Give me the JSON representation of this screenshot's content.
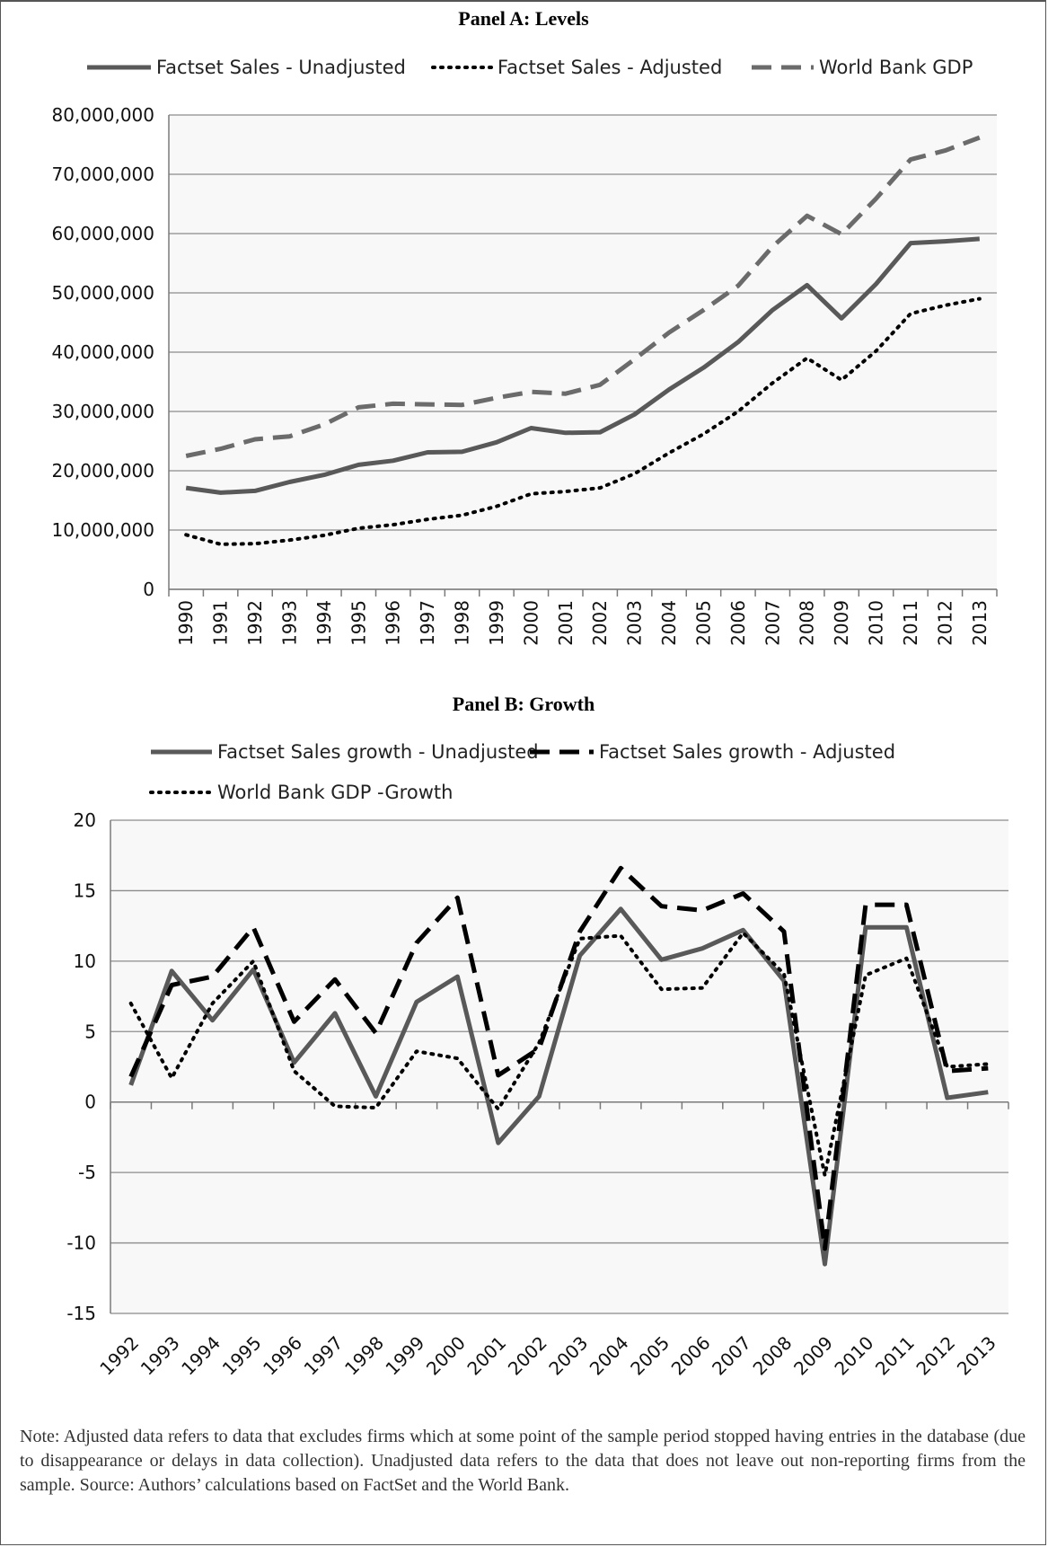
{
  "note": "Note: Adjusted data refers to data that excludes firms which at some point of the sample period stopped having entries in the database (due to disappearance or delays in data collection). Unadjusted data refers to the data that does not leave out non-reporting firms from the sample. Source: Authors’ calculations based on FactSet and the World Bank.",
  "chart_data": [
    {
      "type": "line",
      "title": "Panel A: Levels",
      "xlabel": "",
      "ylabel": "",
      "ylim": [
        0,
        80000000
      ],
      "yticks": [
        "0",
        "10,000,000",
        "20,000,000",
        "30,000,000",
        "40,000,000",
        "50,000,000",
        "60,000,000",
        "70,000,000",
        "80,000,000"
      ],
      "grid": true,
      "legend": "top",
      "categories": [
        "1990",
        "1991",
        "1992",
        "1993",
        "1994",
        "1995",
        "1996",
        "1997",
        "1998",
        "1999",
        "2000",
        "2001",
        "2002",
        "2003",
        "2004",
        "2005",
        "2006",
        "2007",
        "2008",
        "2009",
        "2010",
        "2011",
        "2012",
        "2013"
      ],
      "series": [
        {
          "name": "Factset Sales  - Unadjusted",
          "style": "solid",
          "color": "#595959",
          "values": [
            17100000,
            16300000,
            16600000,
            18100000,
            19300000,
            21000000,
            21700000,
            23100000,
            23200000,
            24800000,
            27200000,
            26400000,
            26500000,
            29500000,
            33700000,
            37400000,
            41700000,
            47100000,
            51300000,
            45700000,
            51500000,
            58400000,
            58700000,
            59100000
          ]
        },
        {
          "name": "Factset Sales  - Adjusted",
          "style": "dotted",
          "color": "#000000",
          "values": [
            9200000,
            7600000,
            7700000,
            8300000,
            9100000,
            10300000,
            10900000,
            11800000,
            12500000,
            14000000,
            16100000,
            16500000,
            17100000,
            19500000,
            23000000,
            26200000,
            30000000,
            34800000,
            39000000,
            35300000,
            40200000,
            46500000,
            47900000,
            49000000
          ]
        },
        {
          "name": "World Bank GDP",
          "style": "dashed",
          "color": "#6b6b6b",
          "values": [
            22500000,
            23700000,
            25300000,
            25800000,
            27800000,
            30700000,
            31300000,
            31200000,
            31100000,
            32300000,
            33300000,
            33000000,
            34500000,
            38800000,
            43300000,
            47100000,
            51200000,
            57800000,
            63000000,
            59900000,
            65900000,
            72500000,
            74000000,
            76200000
          ]
        }
      ]
    },
    {
      "type": "line",
      "title": "Panel B: Growth",
      "xlabel": "",
      "ylabel": "",
      "ylim": [
        -15,
        20
      ],
      "yticks": [
        "-15",
        "-10",
        "-5",
        "0",
        "5",
        "10",
        "15",
        "20"
      ],
      "grid": true,
      "legend": "top",
      "categories": [
        "1992",
        "1993",
        "1994",
        "1995",
        "1996",
        "1997",
        "1998",
        "1999",
        "2000",
        "2001",
        "2002",
        "2003",
        "2004",
        "2005",
        "2006",
        "2007",
        "2008",
        "2009",
        "2010",
        "2011",
        "2012",
        "2013"
      ],
      "series": [
        {
          "name": "Factset Sales growth - Unadjusted",
          "style": "solid",
          "color": "#595959",
          "values": [
            1.2,
            9.3,
            5.8,
            9.4,
            2.8,
            6.3,
            0.4,
            7.1,
            8.9,
            -2.9,
            0.4,
            10.4,
            13.7,
            10.1,
            10.9,
            12.2,
            8.6,
            -11.5,
            12.4,
            12.4,
            0.3,
            0.7
          ]
        },
        {
          "name": "Factset Sales growth - Adjusted",
          "style": "dashed",
          "color": "#000000",
          "values": [
            1.8,
            8.3,
            8.9,
            12.4,
            5.7,
            8.7,
            4.9,
            11.3,
            14.5,
            1.9,
            3.8,
            12.1,
            16.6,
            13.9,
            13.6,
            14.8,
            12.1,
            -10.4,
            14.0,
            14.0,
            2.2,
            2.4
          ]
        },
        {
          "name": "World Bank GDP -Growth",
          "style": "dotted",
          "color": "#000000",
          "values": [
            7.0,
            1.7,
            7.0,
            10.0,
            2.2,
            -0.3,
            -0.4,
            3.6,
            3.1,
            -0.5,
            4.2,
            11.6,
            11.8,
            8.0,
            8.1,
            12.0,
            9.1,
            -5.2,
            9.0,
            10.2,
            2.5,
            2.7
          ]
        }
      ]
    }
  ]
}
